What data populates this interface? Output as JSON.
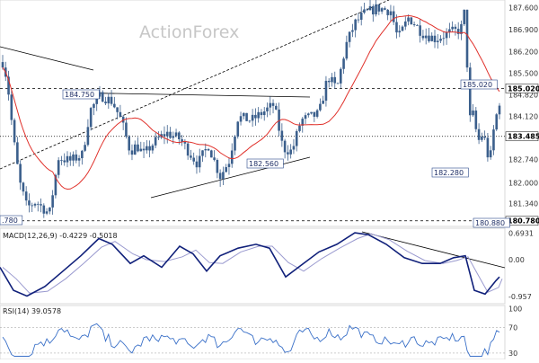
{
  "chart_data": [
    {
      "type": "candlestick",
      "panel": "price",
      "watermark": "ActionForex",
      "colors": {
        "candle": "#3b5f8c",
        "ma": "#e0302a",
        "trendline": "#000000",
        "level": "#000000"
      },
      "y_ticks": [
        {
          "label": "187.600",
          "value": 187.6
        },
        {
          "label": "186.900",
          "value": 186.9
        },
        {
          "label": "186.200",
          "value": 186.2
        },
        {
          "label": "185.500",
          "value": 185.5
        },
        {
          "label": "184.820",
          "value": 184.82
        },
        {
          "label": "184.120",
          "value": 184.12
        },
        {
          "label": "182.740",
          "value": 182.74
        },
        {
          "label": "182.000",
          "value": 182.0
        },
        {
          "label": "181.340",
          "value": 181.34
        }
      ],
      "ylim": [
        180.6,
        187.85
      ],
      "levels": [
        {
          "label": "185.020",
          "value": 185.02,
          "style": "dashed"
        },
        {
          "label": "183.485",
          "value": 183.485,
          "style": "dotted"
        },
        {
          "label": "180.780",
          "value": 180.78,
          "style": "dashed"
        }
      ],
      "annotations": [
        {
          "label": "184.750",
          "value": 184.75
        },
        {
          "label": "182.560",
          "value": 182.56
        },
        {
          "label": "185.020",
          "value": 185.02
        },
        {
          "label": "182.280",
          "value": 182.28
        },
        {
          "label": ".780",
          "value": 180.78
        },
        {
          "label": "180.880",
          "value": 180.88
        }
      ],
      "candles_count": 170
    },
    {
      "type": "line",
      "panel": "macd",
      "title": "MACD(12,26,9) -0.4229 -0.5018",
      "y_ticks": [
        {
          "label": "0.6931",
          "value": 0.6931
        },
        {
          "label": "0.00",
          "value": 0.0
        },
        {
          "label": "-0.957",
          "value": -0.957
        }
      ],
      "ylim": [
        -1.15,
        0.82
      ]
    },
    {
      "type": "line",
      "panel": "rsi",
      "title": "RSI(14) 39.0578",
      "y_ticks": [
        {
          "label": "100",
          "value": 100
        },
        {
          "label": "70",
          "value": 70
        },
        {
          "label": "30",
          "value": 30
        }
      ],
      "ylim": [
        20,
        105
      ]
    }
  ]
}
